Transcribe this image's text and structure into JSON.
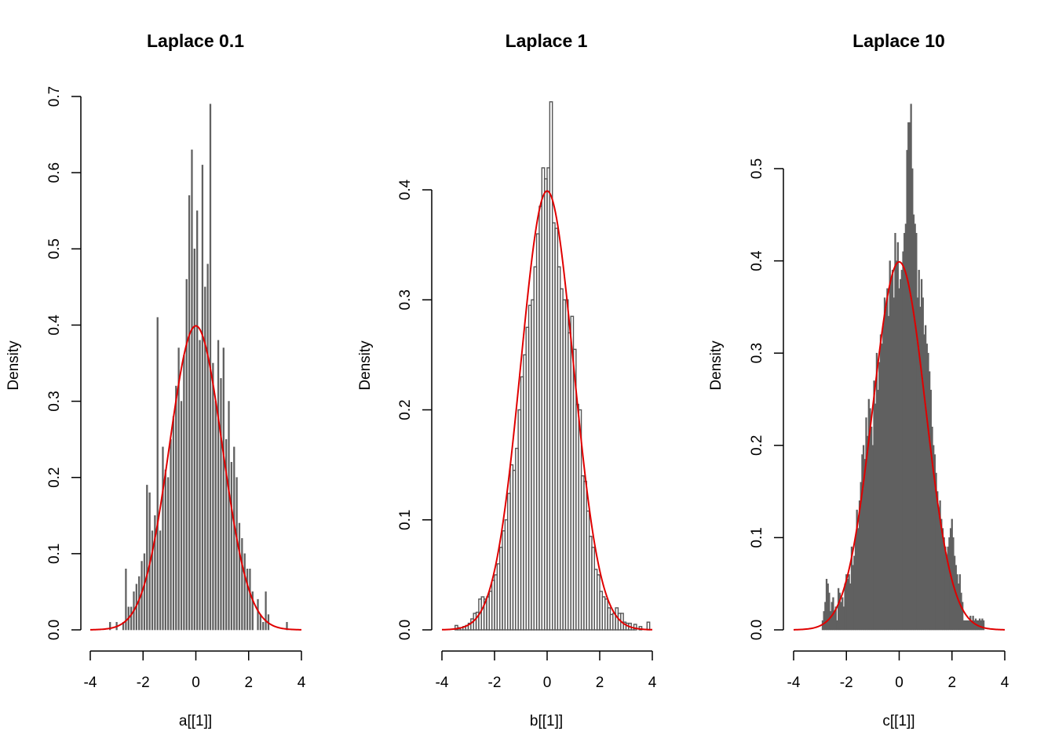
{
  "colors": {
    "bar_fill": "#606060",
    "bar_outline": "#606060",
    "outline_only": "#555555",
    "curve": "#e00000",
    "axis": "#000000",
    "background": "#ffffff"
  },
  "chart_data": [
    {
      "type": "histogram",
      "title": "Laplace 0.1",
      "xlabel": "a[[1]]",
      "ylabel": "Density",
      "xlim": [
        -4,
        4
      ],
      "ylim": [
        0,
        0.7
      ],
      "xticks": [
        "-4",
        "-2",
        "0",
        "2",
        "4"
      ],
      "yticks": [
        "0.0",
        "0.1",
        "0.2",
        "0.3",
        "0.4",
        "0.5",
        "0.6",
        "0.7"
      ],
      "bar_style": "filled",
      "bin_width": 0.05,
      "bins": [
        [
          -3.25,
          0.01
        ],
        [
          -3.0,
          0.01
        ],
        [
          -2.75,
          0.01
        ],
        [
          -2.65,
          0.08
        ],
        [
          -2.55,
          0.03
        ],
        [
          -2.45,
          0.03
        ],
        [
          -2.35,
          0.05
        ],
        [
          -2.25,
          0.06
        ],
        [
          -2.15,
          0.07
        ],
        [
          -2.05,
          0.09
        ],
        [
          -1.95,
          0.1
        ],
        [
          -1.85,
          0.19
        ],
        [
          -1.75,
          0.18
        ],
        [
          -1.65,
          0.13
        ],
        [
          -1.55,
          0.15
        ],
        [
          -1.45,
          0.41
        ],
        [
          -1.35,
          0.13
        ],
        [
          -1.25,
          0.24
        ],
        [
          -1.15,
          0.21
        ],
        [
          -1.05,
          0.2
        ],
        [
          -0.95,
          0.25
        ],
        [
          -0.85,
          0.28
        ],
        [
          -0.75,
          0.32
        ],
        [
          -0.65,
          0.37
        ],
        [
          -0.55,
          0.3
        ],
        [
          -0.45,
          0.36
        ],
        [
          -0.35,
          0.46
        ],
        [
          -0.25,
          0.57
        ],
        [
          -0.15,
          0.63
        ],
        [
          -0.05,
          0.5
        ],
        [
          0.05,
          0.55
        ],
        [
          0.15,
          0.38
        ],
        [
          0.25,
          0.61
        ],
        [
          0.35,
          0.45
        ],
        [
          0.45,
          0.48
        ],
        [
          0.55,
          0.69
        ],
        [
          0.65,
          0.35
        ],
        [
          0.75,
          0.3
        ],
        [
          0.85,
          0.38
        ],
        [
          0.95,
          0.33
        ],
        [
          1.05,
          0.37
        ],
        [
          1.15,
          0.25
        ],
        [
          1.25,
          0.3
        ],
        [
          1.35,
          0.22
        ],
        [
          1.45,
          0.24
        ],
        [
          1.55,
          0.2
        ],
        [
          1.65,
          0.14
        ],
        [
          1.75,
          0.12
        ],
        [
          1.85,
          0.1
        ],
        [
          1.95,
          0.08
        ],
        [
          2.05,
          0.08
        ],
        [
          2.15,
          0.05
        ],
        [
          2.35,
          0.04
        ],
        [
          2.45,
          0.02
        ],
        [
          2.55,
          0.01
        ],
        [
          2.65,
          0.05
        ],
        [
          2.75,
          0.02
        ],
        [
          3.45,
          0.01
        ]
      ],
      "curve": {
        "type": "normal-density",
        "mean": 0,
        "sd": 1
      }
    },
    {
      "type": "histogram",
      "title": "Laplace 1",
      "xlabel": "b[[1]]",
      "ylabel": "Density",
      "xlim": [
        -4,
        4
      ],
      "ylim": [
        0,
        0.4
      ],
      "xticks": [
        "-4",
        "-2",
        "0",
        "2",
        "4"
      ],
      "yticks": [
        "0.0",
        "0.1",
        "0.2",
        "0.3",
        "0.4"
      ],
      "bar_style": "outline",
      "bin_width": 0.1,
      "bins": [
        [
          -3.45,
          0.004
        ],
        [
          -3.35,
          0.002
        ],
        [
          -3.25,
          0.002
        ],
        [
          -3.15,
          0.003
        ],
        [
          -3.05,
          0.004
        ],
        [
          -2.95,
          0.006
        ],
        [
          -2.85,
          0.01
        ],
        [
          -2.75,
          0.015
        ],
        [
          -2.65,
          0.016
        ],
        [
          -2.55,
          0.028
        ],
        [
          -2.45,
          0.03
        ],
        [
          -2.35,
          0.028
        ],
        [
          -2.25,
          0.03
        ],
        [
          -2.15,
          0.035
        ],
        [
          -2.05,
          0.045
        ],
        [
          -1.95,
          0.05
        ],
        [
          -1.85,
          0.06
        ],
        [
          -1.75,
          0.075
        ],
        [
          -1.65,
          0.09
        ],
        [
          -1.55,
          0.1
        ],
        [
          -1.45,
          0.124
        ],
        [
          -1.35,
          0.15
        ],
        [
          -1.25,
          0.145
        ],
        [
          -1.15,
          0.165
        ],
        [
          -1.05,
          0.2
        ],
        [
          -0.95,
          0.23
        ],
        [
          -0.85,
          0.25
        ],
        [
          -0.75,
          0.275
        ],
        [
          -0.65,
          0.295
        ],
        [
          -0.55,
          0.3
        ],
        [
          -0.45,
          0.33
        ],
        [
          -0.35,
          0.36
        ],
        [
          -0.25,
          0.385
        ],
        [
          -0.15,
          0.42
        ],
        [
          -0.05,
          0.41
        ],
        [
          0.05,
          0.42
        ],
        [
          0.15,
          0.48
        ],
        [
          0.25,
          0.37
        ],
        [
          0.35,
          0.365
        ],
        [
          0.45,
          0.33
        ],
        [
          0.55,
          0.31
        ],
        [
          0.65,
          0.3
        ],
        [
          0.75,
          0.3
        ],
        [
          0.85,
          0.27
        ],
        [
          0.95,
          0.285
        ],
        [
          1.05,
          0.255
        ],
        [
          1.15,
          0.205
        ],
        [
          1.25,
          0.2
        ],
        [
          1.35,
          0.14
        ],
        [
          1.45,
          0.135
        ],
        [
          1.55,
          0.108
        ],
        [
          1.65,
          0.085
        ],
        [
          1.75,
          0.075
        ],
        [
          1.85,
          0.055
        ],
        [
          1.95,
          0.05
        ],
        [
          2.05,
          0.035
        ],
        [
          2.15,
          0.03
        ],
        [
          2.25,
          0.028
        ],
        [
          2.35,
          0.02
        ],
        [
          2.45,
          0.014
        ],
        [
          2.55,
          0.015
        ],
        [
          2.65,
          0.02
        ],
        [
          2.75,
          0.015
        ],
        [
          2.85,
          0.015
        ],
        [
          2.95,
          0.007
        ],
        [
          3.05,
          0.006
        ],
        [
          3.15,
          0.006
        ],
        [
          3.25,
          0.002
        ],
        [
          3.35,
          0.005
        ],
        [
          3.55,
          0.003
        ],
        [
          3.85,
          0.007
        ]
      ],
      "curve": {
        "type": "normal-density",
        "mean": 0,
        "sd": 1
      }
    },
    {
      "type": "histogram",
      "title": "Laplace 10",
      "xlabel": "c[[1]]",
      "ylabel": "Density",
      "xlim": [
        -4,
        4
      ],
      "ylim": [
        0,
        0.5
      ],
      "xticks": [
        "-4",
        "-2",
        "0",
        "2",
        "4"
      ],
      "yticks": [
        "0.0",
        "0.1",
        "0.2",
        "0.3",
        "0.4",
        "0.5"
      ],
      "bar_style": "filled",
      "bin_width": 0.05,
      "bins": [
        [
          -2.9,
          0.01
        ],
        [
          -2.85,
          0.02
        ],
        [
          -2.8,
          0.03
        ],
        [
          -2.75,
          0.055
        ],
        [
          -2.7,
          0.05
        ],
        [
          -2.65,
          0.04
        ],
        [
          -2.6,
          0.02
        ],
        [
          -2.55,
          0.03
        ],
        [
          -2.5,
          0.035
        ],
        [
          -2.45,
          0.02
        ],
        [
          -2.4,
          0.025
        ],
        [
          -2.35,
          0.01
        ],
        [
          -2.3,
          0.045
        ],
        [
          -2.25,
          0.04
        ],
        [
          -2.2,
          0.03
        ],
        [
          -2.15,
          0.035
        ],
        [
          -2.1,
          0.025
        ],
        [
          -2.05,
          0.05
        ],
        [
          -2.0,
          0.06
        ],
        [
          -1.95,
          0.055
        ],
        [
          -1.9,
          0.06
        ],
        [
          -1.85,
          0.05
        ],
        [
          -1.8,
          0.09
        ],
        [
          -1.75,
          0.07
        ],
        [
          -1.7,
          0.08
        ],
        [
          -1.65,
          0.1
        ],
        [
          -1.6,
          0.13
        ],
        [
          -1.55,
          0.11
        ],
        [
          -1.5,
          0.14
        ],
        [
          -1.45,
          0.16
        ],
        [
          -1.4,
          0.19
        ],
        [
          -1.35,
          0.2
        ],
        [
          -1.3,
          0.185
        ],
        [
          -1.25,
          0.23
        ],
        [
          -1.2,
          0.21
        ],
        [
          -1.15,
          0.25
        ],
        [
          -1.1,
          0.24
        ],
        [
          -1.05,
          0.22
        ],
        [
          -1.0,
          0.2
        ],
        [
          -0.95,
          0.27
        ],
        [
          -0.9,
          0.245
        ],
        [
          -0.85,
          0.3
        ],
        [
          -0.8,
          0.26
        ],
        [
          -0.75,
          0.29
        ],
        [
          -0.7,
          0.32
        ],
        [
          -0.65,
          0.31
        ],
        [
          -0.6,
          0.33
        ],
        [
          -0.55,
          0.36
        ],
        [
          -0.5,
          0.35
        ],
        [
          -0.45,
          0.37
        ],
        [
          -0.4,
          0.34
        ],
        [
          -0.35,
          0.4
        ],
        [
          -0.3,
          0.38
        ],
        [
          -0.25,
          0.39
        ],
        [
          -0.2,
          0.36
        ],
        [
          -0.15,
          0.43
        ],
        [
          -0.1,
          0.4
        ],
        [
          -0.05,
          0.42
        ],
        [
          0.0,
          0.37
        ],
        [
          0.05,
          0.38
        ],
        [
          0.1,
          0.39
        ],
        [
          0.15,
          0.41
        ],
        [
          0.2,
          0.43
        ],
        [
          0.25,
          0.44
        ],
        [
          0.3,
          0.52
        ],
        [
          0.35,
          0.55
        ],
        [
          0.4,
          0.55
        ],
        [
          0.45,
          0.57
        ],
        [
          0.5,
          0.5
        ],
        [
          0.55,
          0.45
        ],
        [
          0.6,
          0.44
        ],
        [
          0.65,
          0.43
        ],
        [
          0.7,
          0.36
        ],
        [
          0.75,
          0.39
        ],
        [
          0.8,
          0.35
        ],
        [
          0.85,
          0.38
        ],
        [
          0.9,
          0.36
        ],
        [
          0.95,
          0.32
        ],
        [
          1.0,
          0.33
        ],
        [
          1.05,
          0.31
        ],
        [
          1.1,
          0.3
        ],
        [
          1.15,
          0.28
        ],
        [
          1.2,
          0.26
        ],
        [
          1.25,
          0.22
        ],
        [
          1.3,
          0.2
        ],
        [
          1.35,
          0.19
        ],
        [
          1.4,
          0.17
        ],
        [
          1.45,
          0.15
        ],
        [
          1.5,
          0.13
        ],
        [
          1.55,
          0.14
        ],
        [
          1.6,
          0.12
        ],
        [
          1.65,
          0.11
        ],
        [
          1.7,
          0.1
        ],
        [
          1.75,
          0.09
        ],
        [
          1.8,
          0.08
        ],
        [
          1.85,
          0.09
        ],
        [
          1.9,
          0.1
        ],
        [
          1.95,
          0.11
        ],
        [
          2.0,
          0.12
        ],
        [
          2.05,
          0.1
        ],
        [
          2.1,
          0.08
        ],
        [
          2.15,
          0.07
        ],
        [
          2.2,
          0.06
        ],
        [
          2.25,
          0.05
        ],
        [
          2.3,
          0.06
        ],
        [
          2.35,
          0.04
        ],
        [
          2.4,
          0.03
        ],
        [
          2.45,
          0.01
        ],
        [
          2.5,
          0.01
        ],
        [
          2.55,
          0.01
        ],
        [
          2.6,
          0.01
        ],
        [
          2.65,
          0.01
        ],
        [
          2.7,
          0.015
        ],
        [
          2.75,
          0.01
        ],
        [
          2.8,
          0.015
        ],
        [
          2.85,
          0.01
        ],
        [
          2.9,
          0.012
        ],
        [
          2.95,
          0.01
        ],
        [
          3.0,
          0.01
        ],
        [
          3.05,
          0.012
        ],
        [
          3.1,
          0.01
        ],
        [
          3.15,
          0.012
        ],
        [
          3.2,
          0.01
        ]
      ],
      "curve": {
        "type": "normal-density",
        "mean": 0,
        "sd": 1
      }
    }
  ]
}
